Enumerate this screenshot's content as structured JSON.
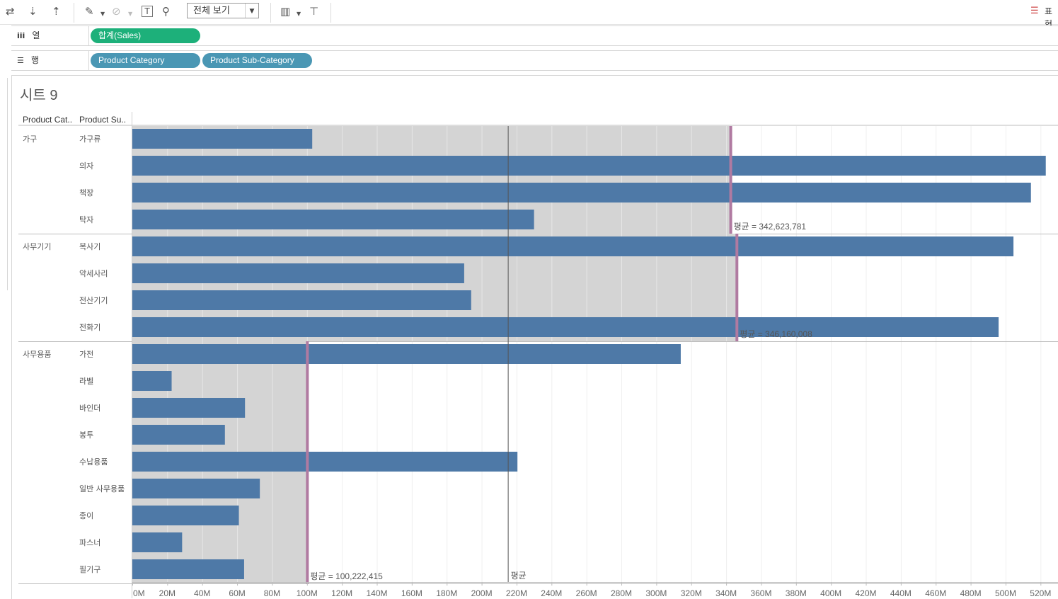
{
  "toolbar": {
    "view_select": "전체 보기",
    "right_label": "표현"
  },
  "shelves": {
    "columns": {
      "label": "열",
      "pills": [
        "합계(Sales)"
      ]
    },
    "rows": {
      "label": "행",
      "pills": [
        "Product Category",
        "Product Sub-Category"
      ]
    }
  },
  "sheet": {
    "title": "시트 9"
  },
  "chart_data": {
    "type": "bar",
    "orientation": "horizontal",
    "row_headers": [
      "Product Cat..",
      "Product Su.."
    ],
    "xlim": [
      0,
      530000000
    ],
    "x_ticks": [
      0,
      20000000,
      40000000,
      60000000,
      80000000,
      100000000,
      120000000,
      140000000,
      160000000,
      180000000,
      200000000,
      220000000,
      240000000,
      260000000,
      280000000,
      300000000,
      320000000,
      340000000,
      360000000,
      380000000,
      400000000,
      420000000,
      440000000,
      460000000,
      480000000,
      500000000,
      520000000
    ],
    "x_tick_labels": [
      "0M",
      "20M",
      "40M",
      "60M",
      "80M",
      "100M",
      "120M",
      "140M",
      "160M",
      "180M",
      "200M",
      "220M",
      "240M",
      "260M",
      "280M",
      "300M",
      "320M",
      "340M",
      "360M",
      "380M",
      "400M",
      "420M",
      "440M",
      "460M",
      "480M",
      "500M",
      "520M"
    ],
    "bar_color": "#4e79a7",
    "band_color": "#d4d4d4",
    "ref_line_color": "#b07aa1",
    "overall_average": 215000000,
    "overall_average_label": "평균",
    "groups": [
      {
        "category": "가구",
        "average": 342623781,
        "average_label": "평균 = 342,623,781",
        "items": [
          {
            "name": "가구류",
            "value": 103000000
          },
          {
            "name": "의자",
            "value": 523000000
          },
          {
            "name": "책장",
            "value": 514500000
          },
          {
            "name": "탁자",
            "value": 230000000
          }
        ]
      },
      {
        "category": "사무기기",
        "average": 346160008,
        "average_label": "평균 = 346,160,008",
        "items": [
          {
            "name": "복사기",
            "value": 504500000
          },
          {
            "name": "악세사리",
            "value": 190000000
          },
          {
            "name": "전산기기",
            "value": 194000000
          },
          {
            "name": "전화기",
            "value": 496000000
          }
        ]
      },
      {
        "category": "사무용품",
        "average": 100222415,
        "average_label": "평균 = 100,222,415",
        "items": [
          {
            "name": "가전",
            "value": 314000000
          },
          {
            "name": "라벨",
            "value": 22500000
          },
          {
            "name": "바인더",
            "value": 64500000
          },
          {
            "name": "봉투",
            "value": 53000000
          },
          {
            "name": "수납용품",
            "value": 220500000
          },
          {
            "name": "일반 사무용품",
            "value": 73000000
          },
          {
            "name": "종이",
            "value": 61000000
          },
          {
            "name": "파스너",
            "value": 28500000
          },
          {
            "name": "필기구",
            "value": 64000000
          }
        ]
      }
    ]
  }
}
